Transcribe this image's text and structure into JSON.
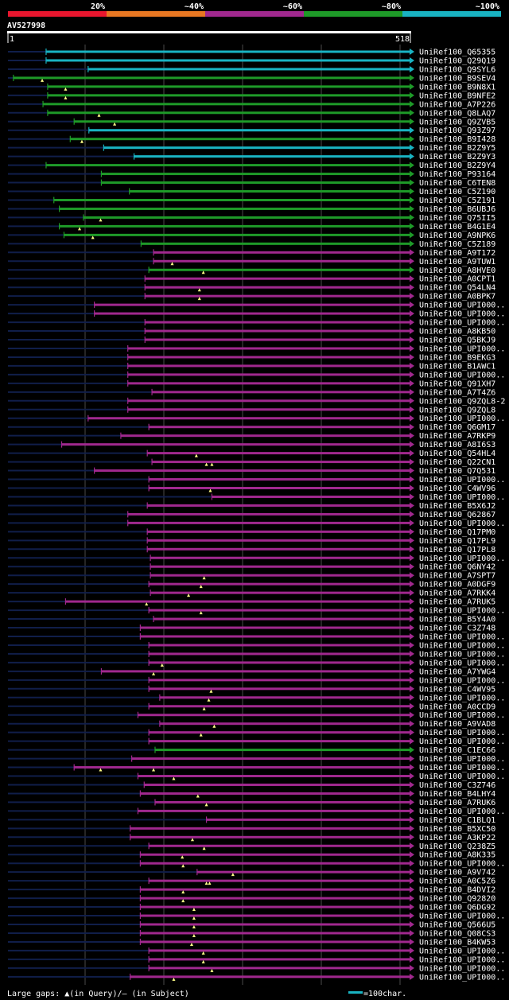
{
  "chart_data": {
    "type": "alignment-overview",
    "query_id": "AV527998",
    "axis": {
      "start": 1,
      "end": 518,
      "start_label": "1",
      "end_label": "518"
    },
    "identity_scale": [
      {
        "label": "20%",
        "color": "#e8162e"
      },
      {
        "label": "~40%",
        "color": "#e87722"
      },
      {
        "label": "~60%",
        "color": "#a0288e"
      },
      {
        "label": "~80%",
        "color": "#1e9a28"
      },
      {
        "label": "~100%",
        "color": "#19b3c2"
      }
    ],
    "legend": {
      "gaps": "Large gaps: ▲(in Query)/– (in Subject)",
      "scale": "=100char."
    },
    "hits": [
      {
        "name": "UniRef100_Q65355",
        "color": "cyan",
        "start": 50,
        "tail": 33,
        "gaps": [],
        "arrow": true
      },
      {
        "name": "UniRef100_Q29Q19",
        "color": "cyan",
        "start": 50,
        "tail": 33,
        "gaps": [],
        "arrow": true
      },
      {
        "name": "UniRef100_Q9SYL6",
        "color": "cyan",
        "start": 104,
        "tail": 33,
        "gaps": [],
        "arrow": true
      },
      {
        "name": "UniRef100_B9SEV4",
        "color": "green",
        "start": 8,
        "tail": 33,
        "gaps": [
          45
        ],
        "arrow": true
      },
      {
        "name": "UniRef100_B9N8X1",
        "color": "green",
        "start": 52,
        "tail": 33,
        "gaps": [
          75
        ],
        "arrow": true
      },
      {
        "name": "UniRef100_B9NFE2",
        "color": "green",
        "start": 52,
        "tail": 33,
        "gaps": [
          75
        ],
        "arrow": true
      },
      {
        "name": "UniRef100_A7P226",
        "color": "green",
        "start": 46,
        "tail": 33,
        "gaps": [],
        "arrow": true
      },
      {
        "name": "UniRef100_Q8LAQ7",
        "color": "green",
        "start": 52,
        "tail": 33,
        "gaps": [
          118
        ],
        "arrow": true
      },
      {
        "name": "UniRef100_Q9ZVB5",
        "color": "green",
        "start": 86,
        "tail": 33,
        "gaps": [
          138
        ],
        "arrow": true
      },
      {
        "name": "UniRef100_Q93Z97",
        "color": "cyan",
        "start": 105,
        "tail": 60,
        "gaps": [],
        "arrow": true
      },
      {
        "name": "UniRef100_B9I428",
        "color": "green",
        "start": 81,
        "tail": 33,
        "gaps": [
          96
        ],
        "arrow": true
      },
      {
        "name": "UniRef100_B2Z9Y5",
        "color": "cyan",
        "start": 124,
        "tail": 33,
        "gaps": [],
        "arrow": true
      },
      {
        "name": "UniRef100_B2Z9Y3",
        "color": "cyan",
        "start": 163,
        "tail": 33,
        "gaps": [],
        "arrow": true
      },
      {
        "name": "UniRef100_B2Z9Y4",
        "color": "green",
        "start": 50,
        "tail": 33,
        "gaps": [],
        "arrow": true
      },
      {
        "name": "UniRef100_P93164",
        "color": "green",
        "start": 121,
        "tail": 33,
        "gaps": [],
        "arrow": true
      },
      {
        "name": "UniRef100_C6TEN8",
        "color": "green",
        "start": 121,
        "tail": 33,
        "gaps": [],
        "arrow": true
      },
      {
        "name": "UniRef100_C5Z190",
        "color": "green",
        "start": 157,
        "tail": 33,
        "gaps": [],
        "arrow": true
      },
      {
        "name": "UniRef100_C5Z191",
        "color": "green",
        "start": 60,
        "tail": 33,
        "gaps": [],
        "arrow": true
      },
      {
        "name": "UniRef100_B6UBJ6",
        "color": "green",
        "start": 67,
        "tail": 33,
        "gaps": [],
        "arrow": true
      },
      {
        "name": "UniRef100_Q75II5",
        "color": "green",
        "start": 98,
        "tail": 33,
        "gaps": [
          120
        ],
        "arrow": true
      },
      {
        "name": "UniRef100_B4G1E4",
        "color": "green",
        "start": 67,
        "tail": 33,
        "gaps": [
          93
        ],
        "arrow": true
      },
      {
        "name": "UniRef100_A9NPK6",
        "color": "green",
        "start": 73,
        "tail": 33,
        "gaps": [
          110
        ],
        "arrow": true
      },
      {
        "name": "UniRef100_C5Z189",
        "color": "green",
        "start": 172,
        "tail": 33,
        "gaps": [],
        "arrow": true
      },
      {
        "name": "UniRef100_A9T172",
        "color": "purple",
        "start": 188,
        "tail": 33,
        "gaps": [],
        "arrow": true
      },
      {
        "name": "UniRef100_A9TUW1",
        "color": "purple",
        "start": 188,
        "tail": 33,
        "gaps": [
          212
        ],
        "arrow": true
      },
      {
        "name": "UniRef100_A8HVE0",
        "color": "green",
        "start": 182,
        "tail": 33,
        "gaps": [
          252
        ],
        "arrow": true
      },
      {
        "name": "UniRef100_A0CPT1",
        "color": "purple",
        "start": 177,
        "tail": 33,
        "gaps": [],
        "arrow": true
      },
      {
        "name": "UniRef100_Q54LN4",
        "color": "purple",
        "start": 177,
        "tail": 33,
        "gaps": [
          247
        ],
        "arrow": true
      },
      {
        "name": "UniRef100_A0BPK7",
        "color": "purple",
        "start": 177,
        "tail": 33,
        "gaps": [
          247
        ],
        "arrow": true
      },
      {
        "name": "UniRef100_UPI000..",
        "color": "purple",
        "start": 112,
        "tail": 33,
        "gaps": [],
        "arrow": true
      },
      {
        "name": "UniRef100_UPI000..",
        "color": "purple",
        "start": 112,
        "tail": 33,
        "gaps": [],
        "arrow": true
      },
      {
        "name": "UniRef100_UPI000..",
        "color": "purple",
        "start": 177,
        "tail": 33,
        "gaps": [],
        "arrow": true
      },
      {
        "name": "UniRef100_A8KB50",
        "color": "purple",
        "start": 177,
        "tail": 33,
        "gaps": [],
        "arrow": true
      },
      {
        "name": "UniRef100_Q5BKJ9",
        "color": "purple",
        "start": 177,
        "tail": 33,
        "gaps": [],
        "arrow": true
      },
      {
        "name": "UniRef100_UPI000..",
        "color": "purple",
        "start": 155,
        "tail": 33,
        "gaps": [],
        "arrow": true
      },
      {
        "name": "UniRef100_B9EKG3",
        "color": "purple",
        "start": 155,
        "tail": 33,
        "gaps": [],
        "arrow": true
      },
      {
        "name": "UniRef100_B1AWC1",
        "color": "purple",
        "start": 155,
        "tail": 33,
        "gaps": [],
        "arrow": true
      },
      {
        "name": "UniRef100_UPI000..",
        "color": "purple",
        "start": 155,
        "tail": 33,
        "gaps": [],
        "arrow": true
      },
      {
        "name": "UniRef100_Q91XH7",
        "color": "purple",
        "start": 155,
        "tail": 33,
        "gaps": [],
        "arrow": true
      },
      {
        "name": "UniRef100_A7T4Z6",
        "color": "purple",
        "start": 186,
        "tail": 33,
        "gaps": [],
        "arrow": true
      },
      {
        "name": "UniRef100_Q9ZQL8-2",
        "color": "purple",
        "start": 155,
        "tail": 33,
        "gaps": [],
        "arrow": true
      },
      {
        "name": "UniRef100_Q9ZQL8",
        "color": "purple",
        "start": 155,
        "tail": 33,
        "gaps": [],
        "arrow": true
      },
      {
        "name": "UniRef100_UPI000..",
        "color": "purple",
        "start": 104,
        "tail": 33,
        "gaps": [],
        "arrow": true
      },
      {
        "name": "UniRef100_Q6GM17",
        "color": "purple",
        "start": 182,
        "tail": 33,
        "gaps": [],
        "arrow": true
      },
      {
        "name": "UniRef100_A7RKP9",
        "color": "purple",
        "start": 146,
        "tail": 33,
        "gaps": [],
        "arrow": true
      },
      {
        "name": "UniRef100_A8I6S3",
        "color": "purple",
        "start": 70,
        "tail": 33,
        "gaps": [],
        "arrow": true
      },
      {
        "name": "UniRef100_Q54HL4",
        "color": "purple",
        "start": 180,
        "tail": 33,
        "gaps": [
          243
        ],
        "arrow": true
      },
      {
        "name": "UniRef100_Q22CN1",
        "color": "purple",
        "start": 186,
        "tail": 33,
        "gaps": [
          256,
          263
        ],
        "arrow": true
      },
      {
        "name": "UniRef100_Q7Q531",
        "color": "purple",
        "start": 112,
        "tail": 33,
        "gaps": [],
        "arrow": true
      },
      {
        "name": "UniRef100_UPI000..",
        "color": "purple",
        "start": 182,
        "tail": 33,
        "gaps": [],
        "arrow": true
      },
      {
        "name": "UniRef100_C4WV96",
        "color": "purple",
        "start": 182,
        "tail": 33,
        "gaps": [
          261
        ],
        "arrow": true
      },
      {
        "name": "UniRef100_UPI000..",
        "color": "purple",
        "start": 263,
        "tail": 33,
        "gaps": [],
        "arrow": true
      },
      {
        "name": "UniRef100_B5X6J2",
        "color": "purple",
        "start": 180,
        "tail": 33,
        "gaps": [],
        "arrow": true
      },
      {
        "name": "UniRef100_Q62867",
        "color": "purple",
        "start": 155,
        "tail": 33,
        "gaps": [],
        "arrow": true
      },
      {
        "name": "UniRef100_UPI000..",
        "color": "purple",
        "start": 155,
        "tail": 33,
        "gaps": [],
        "arrow": true
      },
      {
        "name": "UniRef100_Q17PM0",
        "color": "purple",
        "start": 180,
        "tail": 33,
        "gaps": [],
        "arrow": true
      },
      {
        "name": "UniRef100_Q17PL9",
        "color": "purple",
        "start": 180,
        "tail": 33,
        "gaps": [],
        "arrow": true
      },
      {
        "name": "UniRef100_Q17PL8",
        "color": "purple",
        "start": 180,
        "tail": 33,
        "gaps": [],
        "arrow": true
      },
      {
        "name": "UniRef100_UPI000..",
        "color": "purple",
        "start": 184,
        "tail": 33,
        "gaps": [],
        "arrow": true
      },
      {
        "name": "UniRef100_Q6NY42",
        "color": "purple",
        "start": 184,
        "tail": 33,
        "gaps": [],
        "arrow": true
      },
      {
        "name": "UniRef100_A7SPT7",
        "color": "purple",
        "start": 184,
        "tail": 33,
        "gaps": [
          253
        ],
        "arrow": true
      },
      {
        "name": "UniRef100_A0DGF9",
        "color": "purple",
        "start": 182,
        "tail": 33,
        "gaps": [
          249
        ],
        "arrow": true
      },
      {
        "name": "UniRef100_A7RKK4",
        "color": "purple",
        "start": 184,
        "tail": 33,
        "gaps": [
          233
        ],
        "arrow": true
      },
      {
        "name": "UniRef100_A7RUK5",
        "color": "purple",
        "start": 75,
        "tail": 33,
        "gaps": [
          179
        ],
        "arrow": true
      },
      {
        "name": "UniRef100_UPI000..",
        "color": "purple",
        "start": 182,
        "tail": 33,
        "gaps": [
          249
        ],
        "arrow": true
      },
      {
        "name": "UniRef100_B5Y4A0",
        "color": "purple",
        "start": 188,
        "tail": 33,
        "gaps": [],
        "arrow": true
      },
      {
        "name": "UniRef100_C3Z748",
        "color": "purple",
        "start": 171,
        "tail": 33,
        "gaps": [],
        "arrow": true
      },
      {
        "name": "UniRef100_UPI000..",
        "color": "purple",
        "start": 171,
        "tail": 33,
        "gaps": [],
        "arrow": true
      },
      {
        "name": "UniRef100_UPI000..",
        "color": "purple",
        "start": 182,
        "tail": 33,
        "gaps": [],
        "arrow": true
      },
      {
        "name": "UniRef100_UPI000..",
        "color": "purple",
        "start": 182,
        "tail": 33,
        "gaps": [],
        "arrow": true
      },
      {
        "name": "UniRef100_UPI000..",
        "color": "purple",
        "start": 182,
        "tail": 33,
        "gaps": [
          199
        ],
        "arrow": true
      },
      {
        "name": "UniRef100_A7YWG4",
        "color": "purple",
        "start": 121,
        "tail": 33,
        "gaps": [
          188
        ],
        "arrow": true
      },
      {
        "name": "UniRef100_UPI000..",
        "color": "purple",
        "start": 182,
        "tail": 33,
        "gaps": [],
        "arrow": true
      },
      {
        "name": "UniRef100_C4WV95",
        "color": "purple",
        "start": 182,
        "tail": 33,
        "gaps": [
          262
        ],
        "arrow": true
      },
      {
        "name": "UniRef100_UPI000..",
        "color": "purple",
        "start": 196,
        "tail": 33,
        "gaps": [
          259
        ],
        "arrow": true
      },
      {
        "name": "UniRef100_A0CCD9",
        "color": "purple",
        "start": 182,
        "tail": 33,
        "gaps": [
          253
        ],
        "arrow": true
      },
      {
        "name": "UniRef100_UPI000..",
        "color": "purple",
        "start": 168,
        "tail": 33,
        "gaps": [],
        "arrow": true
      },
      {
        "name": "UniRef100_A9VAD8",
        "color": "purple",
        "start": 196,
        "tail": 33,
        "gaps": [
          266
        ],
        "arrow": true
      },
      {
        "name": "UniRef100_UPI000..",
        "color": "purple",
        "start": 182,
        "tail": 33,
        "gaps": [
          249
        ],
        "arrow": true
      },
      {
        "name": "UniRef100_UPI000..",
        "color": "purple",
        "start": 182,
        "tail": 33,
        "gaps": [],
        "arrow": true
      },
      {
        "name": "UniRef100_C1EC66",
        "color": "green",
        "start": 190,
        "tail": 123,
        "gaps": [],
        "arrow": true
      },
      {
        "name": "UniRef100_UPI000..",
        "color": "purple",
        "start": 160,
        "tail": 33,
        "gaps": [],
        "arrow": true
      },
      {
        "name": "UniRef100_UPI000..",
        "color": "purple",
        "start": 86,
        "tail": 33,
        "gaps": [
          120,
          188
        ],
        "arrow": true
      },
      {
        "name": "UniRef100_UPI000..",
        "color": "purple",
        "start": 168,
        "tail": 33,
        "gaps": [
          214
        ],
        "arrow": true
      },
      {
        "name": "UniRef100_C3Z746",
        "color": "purple",
        "start": 176,
        "tail": 33,
        "gaps": [],
        "arrow": true
      },
      {
        "name": "UniRef100_B4LHY4",
        "color": "purple",
        "start": 171,
        "tail": 33,
        "gaps": [
          245
        ],
        "arrow": true
      },
      {
        "name": "UniRef100_A7RUK6",
        "color": "purple",
        "start": 190,
        "tail": 33,
        "gaps": [
          256
        ],
        "arrow": true
      },
      {
        "name": "UniRef100_UPI000..",
        "color": "purple",
        "start": 168,
        "tail": 33,
        "gaps": [],
        "arrow": true
      },
      {
        "name": "UniRef100_C1BLQ1",
        "color": "purple",
        "start": 256,
        "tail": 33,
        "gaps": [],
        "arrow": true
      },
      {
        "name": "UniRef100_B5XC50",
        "color": "purple",
        "start": 158,
        "tail": 33,
        "gaps": [],
        "arrow": true
      },
      {
        "name": "UniRef100_A3KP22",
        "color": "purple",
        "start": 158,
        "tail": 33,
        "gaps": [
          238
        ],
        "arrow": true
      },
      {
        "name": "UniRef100_Q238Z5",
        "color": "purple",
        "start": 182,
        "tail": 33,
        "gaps": [
          253
        ],
        "arrow": true
      },
      {
        "name": "UniRef100_A8K335",
        "color": "purple",
        "start": 171,
        "tail": 33,
        "gaps": [
          225
        ],
        "arrow": true
      },
      {
        "name": "UniRef100_UPI000..",
        "color": "purple",
        "start": 171,
        "tail": 33,
        "gaps": [
          226
        ],
        "arrow": true
      },
      {
        "name": "UniRef100_A9V742",
        "color": "purple",
        "start": 244,
        "tail": 33,
        "gaps": [
          290
        ],
        "arrow": true
      },
      {
        "name": "UniRef100_A0C5Z6",
        "color": "purple",
        "start": 182,
        "tail": 33,
        "gaps": [
          256,
          260
        ],
        "arrow": true
      },
      {
        "name": "UniRef100_B4DVI2",
        "color": "purple",
        "start": 171,
        "tail": 33,
        "gaps": [
          226
        ],
        "arrow": true
      },
      {
        "name": "UniRef100_Q92820",
        "color": "purple",
        "start": 171,
        "tail": 33,
        "gaps": [
          226
        ],
        "arrow": true
      },
      {
        "name": "UniRef100_Q6DG92",
        "color": "purple",
        "start": 171,
        "tail": 33,
        "gaps": [
          240
        ],
        "arrow": true
      },
      {
        "name": "UniRef100_UPI000..",
        "color": "purple",
        "start": 171,
        "tail": 33,
        "gaps": [
          240
        ],
        "arrow": true
      },
      {
        "name": "UniRef100_Q566U5",
        "color": "purple",
        "start": 171,
        "tail": 33,
        "gaps": [
          240
        ],
        "arrow": true
      },
      {
        "name": "UniRef100_Q08CS3",
        "color": "purple",
        "start": 171,
        "tail": 33,
        "gaps": [
          240
        ],
        "arrow": true
      },
      {
        "name": "UniRef100_B4KW53",
        "color": "purple",
        "start": 171,
        "tail": 33,
        "gaps": [
          237
        ],
        "arrow": true
      },
      {
        "name": "UniRef100_UPI000..",
        "color": "purple",
        "start": 182,
        "tail": 33,
        "gaps": [
          252
        ],
        "arrow": true
      },
      {
        "name": "UniRef100_UPI000..",
        "color": "purple",
        "start": 182,
        "tail": 33,
        "gaps": [
          252
        ],
        "arrow": true
      },
      {
        "name": "UniRef100_UPI000..",
        "color": "purple",
        "start": 182,
        "tail": 33,
        "gaps": [
          263
        ],
        "arrow": true
      },
      {
        "name": "UniRef100_UPI000..",
        "color": "purple",
        "start": 158,
        "tail": 33,
        "gaps": [
          214
        ],
        "arrow": true
      }
    ]
  }
}
